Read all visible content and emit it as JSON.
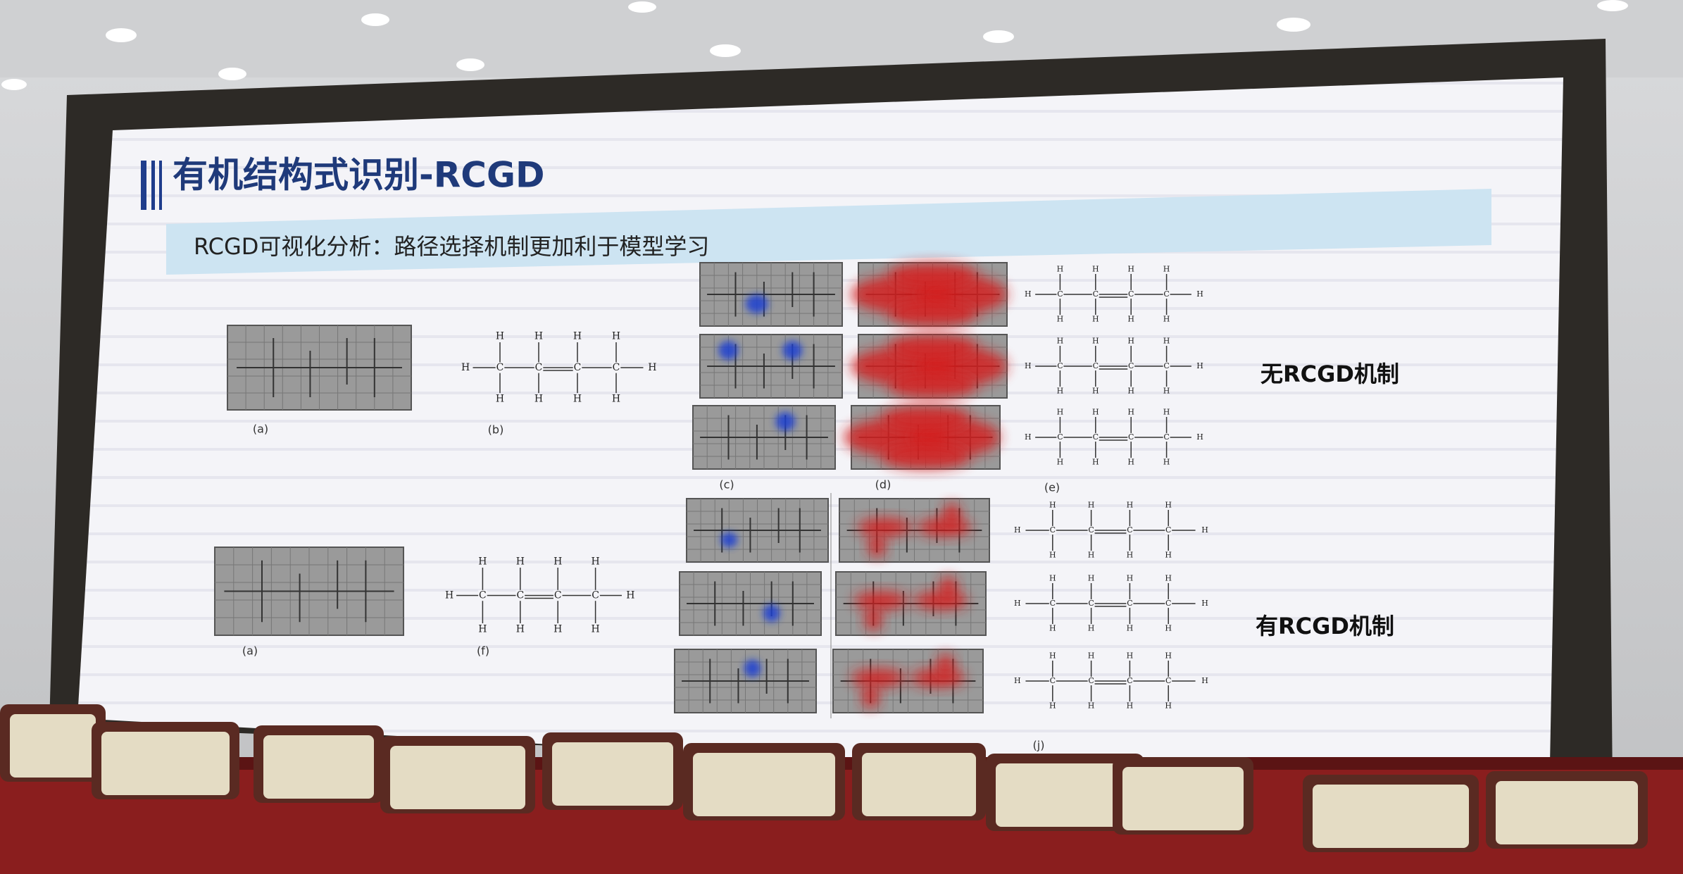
{
  "slide": {
    "title": "有机结构式识别-RCGD",
    "subtitle": "RCGD可视化分析：路径选择机制更加利于模型学习",
    "rows": [
      {
        "label": "无RCGD机制",
        "panel_labels": [
          "(a)",
          "(b)",
          "(c)",
          "(d)",
          "(e)"
        ]
      },
      {
        "label": "有RCGD机制",
        "panel_labels": [
          "(a)",
          "(f)",
          "(j)"
        ]
      }
    ],
    "formula_atoms": [
      "H",
      "C"
    ]
  }
}
